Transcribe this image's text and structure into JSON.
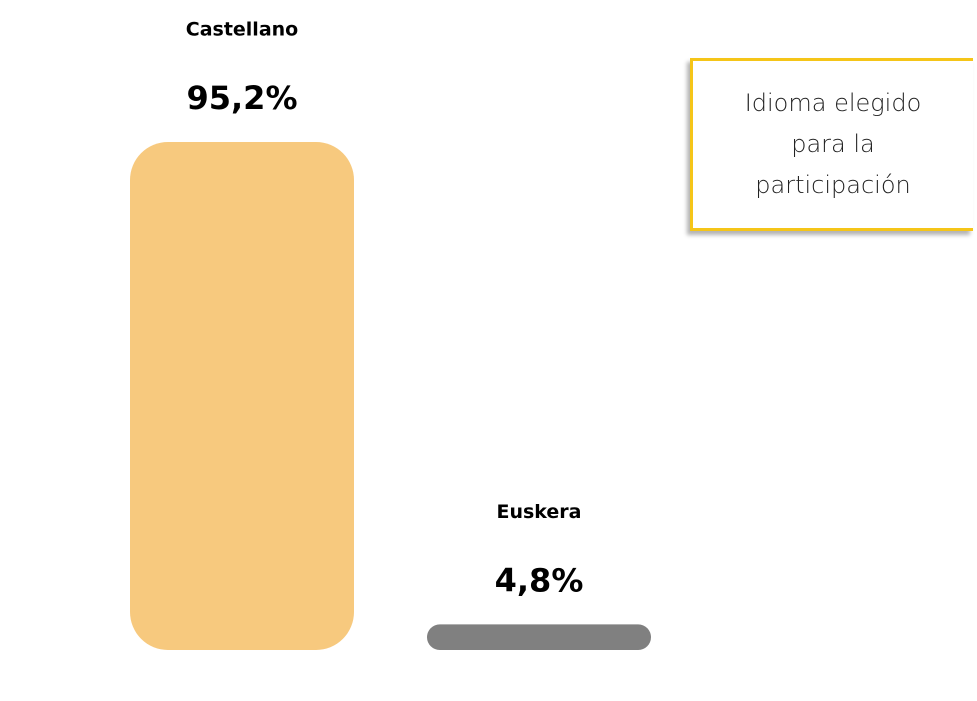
{
  "chart_data": {
    "type": "bar",
    "title": "Idioma elegido para la participación",
    "categories": [
      "Castellano",
      "Euskera"
    ],
    "values": [
      95.2,
      4.8
    ],
    "value_labels": [
      "95,2%",
      "4,8%"
    ],
    "colors": [
      "#f7c97e",
      "#808080"
    ]
  }
}
